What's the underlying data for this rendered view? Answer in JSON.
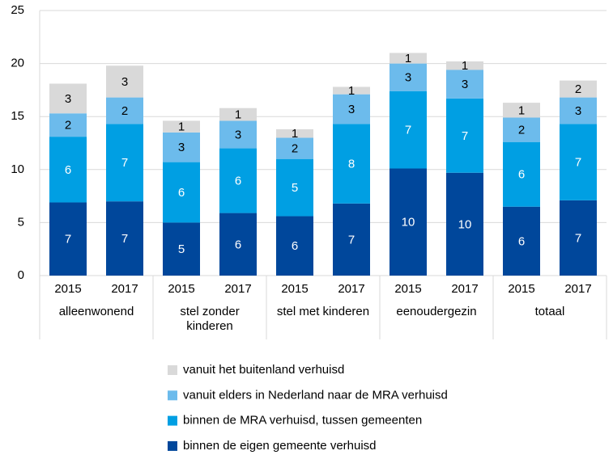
{
  "chart_data": {
    "type": "stacked-bar",
    "categories": [
      "2015",
      "2017",
      "2015",
      "2017",
      "2015",
      "2017",
      "2015",
      "2017",
      "2015",
      "2017"
    ],
    "groups": [
      "alleenwonend",
      "stel zonder kinderen",
      "stel met kinderen",
      "eenoudergezin",
      "totaal"
    ],
    "series": [
      {
        "name": "binnen de eigen gemeente verhuisd",
        "color": "#00479b",
        "values": [
          6.9,
          7.0,
          5.0,
          5.9,
          5.6,
          6.8,
          10.1,
          9.7,
          6.5,
          7.1
        ],
        "value_labels": [
          "7",
          "7",
          "5",
          "6",
          "6",
          "7",
          "10",
          "10",
          "6",
          "7"
        ]
      },
      {
        "name": "binnen de MRA verhuisd, tussen gemeenten",
        "color": "#009fe3",
        "values": [
          6.2,
          7.3,
          5.7,
          6.1,
          5.4,
          7.5,
          7.3,
          7.0,
          6.1,
          7.2
        ],
        "value_labels": [
          "6",
          "7",
          "6",
          "6",
          "5",
          "8",
          "7",
          "7",
          "6",
          "7"
        ]
      },
      {
        "name": "vanuit elders in Nederland naar de MRA verhuisd",
        "color": "#6cbbec",
        "values": [
          2.2,
          2.5,
          2.8,
          2.6,
          2.0,
          2.8,
          2.6,
          2.7,
          2.3,
          2.5
        ],
        "value_labels": [
          "2",
          "2",
          "3",
          "3",
          "2",
          "3",
          "3",
          "3",
          "2",
          "3"
        ]
      },
      {
        "name": "vanuit het buitenland verhuisd",
        "color": "#d9d9d9",
        "values": [
          2.8,
          3.0,
          1.1,
          1.2,
          0.8,
          0.7,
          1.0,
          0.8,
          1.4,
          1.6
        ],
        "value_labels": [
          "3",
          "3",
          "1",
          "1",
          "1",
          "1",
          "1",
          "1",
          "1",
          "2"
        ]
      }
    ],
    "ylim": [
      0,
      25
    ],
    "yticks": [
      0,
      5,
      10,
      15,
      20,
      25
    ],
    "grid": true
  }
}
